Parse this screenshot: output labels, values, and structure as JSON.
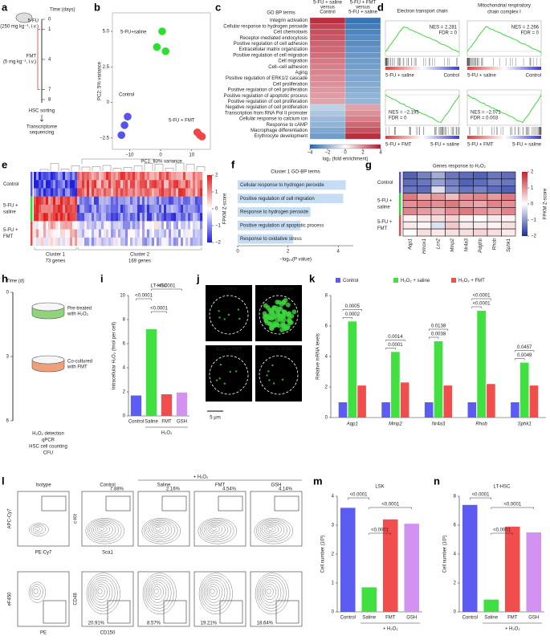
{
  "letters": [
    "a",
    "b",
    "c",
    "d",
    "e",
    "f",
    "g",
    "h",
    "i",
    "j",
    "k",
    "l",
    "m",
    "n"
  ],
  "a": {
    "time_label": "Time (days)",
    "days": [
      0,
      1,
      4,
      7,
      8
    ],
    "drug1": "5-FU",
    "dose1": "(250 mg kg⁻¹, i.v.)",
    "drug2": "FMT",
    "dose2": "(5 mg kg⁻¹, i.v.)",
    "sorting": "HSC sorting",
    "sequencing": [
      "Transcriptome",
      "sequencing"
    ],
    "colors": [
      "#9b59d0",
      "#e03a3a"
    ]
  },
  "b": {
    "type": "scatter",
    "xlabel": "PC1: 93% variance",
    "ylabel": "PC2: 5% variance",
    "xlim": [
      -15.5,
      16
    ],
    "ylim": [
      -3.3,
      6.3
    ],
    "xticks": [
      {
        "value": -10,
        "label": "−10"
      },
      0,
      10
    ],
    "yticks": [
      {
        "value": -2.5,
        "label": "−2.5"
      },
      0,
      2.5,
      {
        "value": 5,
        "label": "5.0"
      }
    ],
    "series": [
      {
        "name": "5-FU+saline",
        "color": "#2ee02e",
        "x": [
          0.5,
          -1.2,
          1.6
        ],
        "values": [
          5.0,
          3.9,
          3.6
        ]
      },
      {
        "name": "Control",
        "color": "#5555ee",
        "x": [
          -10.6,
          -11.6,
          -12.6
        ],
        "values": [
          -1.0,
          -1.6,
          -2.3
        ]
      },
      {
        "name": "5-FU + FMT",
        "color": "#f04848",
        "x": [
          11.8,
          12.6,
          13.3
        ],
        "values": [
          -2.1,
          -2.3,
          -2.4
        ]
      }
    ]
  },
  "c": {
    "header": "GO BP terms",
    "col_headers": [
      [
        "5-FU + saline",
        "versus",
        "Control"
      ],
      [
        "5-FU + FMT",
        "versus",
        "5-FU + saline"
      ]
    ],
    "terms": [
      "Integrin activation",
      "Cellular response to hydrogen peroxide",
      "Cell chemotaxis",
      "Receptor-mediated endocytosis",
      "Positive regulation of cell adhesion",
      "Extracellular matrix organization",
      "Positive regulation of cell migration",
      "Cell migration",
      "Cell–cell adhesion",
      "Aging",
      "Positive regulation of ERK1/2 cascade",
      "Cell proliferation",
      "Positive regulation of cell proliferation",
      "Positive regulation of apoptotic process",
      "Positive regulation of cell proliferation",
      "Negative regulation of cell proliferation",
      "Transcription from RNA Pol II promoter",
      "Cellular response to calcium ion",
      "Response to cAMP",
      "Macrophage differentiation",
      "Erythrocyte development"
    ],
    "term_colors": [
      "#3a8fd8",
      "#3a8fd8",
      "#3a8fd8",
      "#3a8fd8",
      "#3a8fd8",
      "#3a8fd8",
      "#3a8fd8",
      "#3a8fd8",
      "#3a8fd8",
      "#3a8fd8",
      "#3a8fd8",
      "#3a8fd8",
      "#3a8fd8",
      "#3a8fd8",
      "#3a8fd8",
      "#e03a3a",
      "#e03a3a",
      "#e03a3a",
      "#e03a3a",
      "#e03a3a",
      "#e03a3a"
    ],
    "values": [
      [
        3.6,
        3.2,
        3.0,
        2.9,
        2.7,
        2.6,
        2.5,
        2.3,
        2.2,
        2.1,
        2.0,
        1.9,
        1.8,
        1.7,
        1.6,
        -1.2,
        -1.5,
        -1.8,
        -2.0,
        -2.3,
        -2.6
      ],
      [
        -3.6,
        -3.4,
        -3.2,
        -3.0,
        -3.0,
        -2.8,
        -2.7,
        -2.6,
        -2.5,
        -2.4,
        -2.3,
        -2.2,
        -2.1,
        -2.0,
        -1.9,
        1.6,
        1.9,
        2.2,
        2.6,
        3.0,
        3.6
      ]
    ],
    "scale_label": "log₂ (fold enrichment)",
    "scale_lim": [
      -4,
      4
    ],
    "scale_ticks": [
      {
        "value": -4,
        "label": "−4"
      },
      {
        "value": -2,
        "label": "−2"
      },
      0,
      2,
      4
    ],
    "scale_colors": [
      "#2166ac",
      "#ffffff",
      "#b2182b"
    ]
  },
  "d": {
    "plots": [
      {
        "title": [
          "Electron transport chain"
        ],
        "nes": "NES = 2.281",
        "fdr": "FDR = 0",
        "left": "5-FU + saline",
        "right": "Control",
        "left_color": "#e03a3a",
        "right_color": "#3a6fd8"
      },
      {
        "title": [
          "Mitochondrial respiratory",
          "chain complex I"
        ],
        "nes": "NES = 2.266",
        "fdr": "FDR = 0",
        "left": "5-FU + saline",
        "right": "Control",
        "left_color": "#e03a3a",
        "right_color": "#3a6fd8"
      },
      {
        "title": [],
        "nes": "NES = −2.195",
        "fdr": "FDR = 0",
        "left": "5-FU + FMT",
        "right": "5-FU + saline",
        "left_color": "#2ec02e",
        "right_color": "#f0902e"
      },
      {
        "title": [],
        "nes": "NES = −2.071",
        "fdr": "FDR = 0.003",
        "left": "5-FU + FMT",
        "right": "5-FU + saline",
        "left_color": "#2ec02e",
        "right_color": "#f0902e"
      }
    ]
  },
  "e": {
    "groups": [
      [
        "Control"
      ],
      [
        "5-FU +",
        "saline"
      ],
      [
        "5-FU +",
        "FMT"
      ]
    ],
    "group_colors": [
      "#5555ee",
      "#2ee02e",
      "#f04848"
    ],
    "clusters": [
      [
        "Cluster 1",
        "73 genes"
      ],
      [
        "Cluster 2",
        "169 genes"
      ]
    ],
    "cluster_colors": [
      "#3a7fd0",
      "#f0a070"
    ],
    "scale_lim": [
      -2,
      2
    ],
    "scale_ticks": [
      2,
      1,
      0,
      {
        "value": -1,
        "label": "−1"
      },
      {
        "value": -2,
        "label": "−2"
      }
    ],
    "scale_label": "FPKM Z-score",
    "scale_colors": [
      "#2020d8",
      "#ffffff",
      "#e02020"
    ]
  },
  "f": {
    "type": "bar",
    "title": "Cluster 1 GO-BP terms",
    "categories": [
      "Cellular response to hydrogen peroxide",
      "Positive regulation of cell migration",
      "Response to hydrogen peroxide",
      "Positive regulation of apoptotic process",
      "Response to oxidative stress"
    ],
    "values": [
      4.3,
      4.2,
      2.9,
      2.5,
      2.2
    ],
    "xlim": [
      0,
      4.6
    ],
    "xticks": [
      0,
      2,
      4
    ],
    "xlabel": "−log₁₀(P value)",
    "color": "#c6dcf3"
  },
  "g": {
    "title": "Genes response to H₂O₂",
    "genes": [
      "Aqp1",
      "Hmox1",
      "Lcn2",
      "Mmp2",
      "Nr4a3",
      "Pdgfrb",
      "Rhob",
      "Sphk1"
    ],
    "groups": [
      [
        "Control"
      ],
      [
        "5-FU +",
        "saline"
      ],
      [
        "5-FU +",
        "FMT"
      ]
    ],
    "group_colors": [
      "#5555ee",
      "#2ee02e",
      "#f04848"
    ],
    "values": [
      [
        -1.5,
        -1.2,
        -0.8,
        -1.3,
        -1.4,
        -1.5,
        -1.3,
        -1.4
      ],
      [
        -1.4,
        -1.3,
        -0.9,
        -1.2,
        -1.5,
        -1.4,
        -1.2,
        -1.3
      ],
      [
        -1.3,
        -1.4,
        -0.3,
        -1.1,
        -1.3,
        -1.2,
        -1.4,
        -1.5
      ],
      [
        1.2,
        0.8,
        0.9,
        0.6,
        1.0,
        1.1,
        0.9,
        1.2
      ],
      [
        1.0,
        1.1,
        1.0,
        1.2,
        0.9,
        0.8,
        1.1,
        1.0
      ],
      [
        1.1,
        0.9,
        0.7,
        1.0,
        1.2,
        1.0,
        0.8,
        1.1
      ],
      [
        0.1,
        0.2,
        0.3,
        0.4,
        0.1,
        0.0,
        0.2,
        0.1
      ],
      [
        0.2,
        0.1,
        -0.3,
        0.5,
        0.2,
        0.2,
        0.1,
        0.3
      ],
      [
        0.0,
        0.3,
        0.2,
        0.3,
        0.3,
        0.4,
        0.3,
        0.2
      ]
    ],
    "scale_lim": [
      -2,
      2
    ],
    "scale_ticks": [
      2,
      1,
      0,
      {
        "value": -1,
        "label": "−1"
      },
      {
        "value": -2,
        "label": "−2"
      }
    ],
    "scale_label": "FPKM Z-score",
    "scale_colors": [
      "#1a2e9c",
      "#ffffff",
      "#c8202c"
    ]
  },
  "h": {
    "time_label": "Time (d)",
    "days": [
      0,
      3,
      6
    ],
    "steps": [
      [
        "Pre-treated",
        "with H₂O₂"
      ],
      [
        "Co-cultured",
        "with FMT"
      ]
    ],
    "readouts": [
      "H₂O₂ detection",
      "qPCR",
      "HSC cell counting",
      "CFU"
    ]
  },
  "i": {
    "type": "bar",
    "title": "LT-HSC",
    "categories": [
      "Control",
      "Saline",
      "FMT",
      "GSH"
    ],
    "values": [
      1.7,
      7.2,
      1.8,
      1.95
    ],
    "colors": [
      "#5c5cf2",
      "#3fe03f",
      "#f24d4d",
      "#d392f2"
    ],
    "ylim": [
      0,
      10
    ],
    "yticks": [
      0,
      2,
      4,
      6,
      8,
      10
    ],
    "ylabel": "Intracellular H₂O₂ (fmol per cell)",
    "group_label": "H₂O₂",
    "pvalues": [
      "<0.0001",
      "<0.0001",
      "<0.0001"
    ]
  },
  "j": {
    "labels": [
      "Control",
      "H₂O₂ + saline",
      "H₂O₂ + FMT",
      "H₂O₂ + GSH"
    ],
    "scale_bar": "5 μm"
  },
  "k": {
    "type": "bar",
    "categories": [
      "Aqp1",
      "Mmp2",
      "Nr4a3",
      "Rhob",
      "Sphk1"
    ],
    "series": [
      {
        "name": "Control",
        "color": "#5c5cf2",
        "values": [
          1,
          1,
          1,
          1,
          1
        ]
      },
      {
        "name": "H₂O₂ + saline",
        "color": "#3fe03f",
        "values": [
          6.3,
          4.3,
          5.0,
          7.0,
          3.6
        ]
      },
      {
        "name": "H₂O₂ + FMT",
        "color": "#f24d4d",
        "values": [
          2.1,
          2.3,
          2.1,
          2.2,
          2.1
        ]
      }
    ],
    "ylim": [
      0,
      8
    ],
    "yticks": [
      0,
      2,
      4,
      6,
      8
    ],
    "ylabel": "Relative mRNA levels",
    "pvalues": [
      [
        "0.0005",
        "0.0002"
      ],
      [
        "0.0014",
        "0.0001"
      ],
      [
        "0.0138",
        "0.0038"
      ],
      [
        "<0.0001",
        "<0.0001"
      ],
      [
        "0.0457",
        "0.0049"
      ]
    ]
  },
  "l": {
    "columns": [
      "Isotype",
      "Control",
      "Saline",
      "FMT",
      "GSH"
    ],
    "treatment": "+ H₂O₂",
    "top_percent": [
      "7.88%",
      "2.16%",
      "4.54%",
      "4.14%"
    ],
    "bottom_percent": [
      "20.91%",
      "8.57%",
      "19.21%",
      "18.64%"
    ],
    "isotype_axes": [
      [
        "APC-Cy7",
        "PE-Cy7"
      ],
      [
        "eF450",
        "PE"
      ]
    ],
    "axes": [
      [
        "c-Kit",
        "Sca1"
      ],
      [
        "CD48",
        "CD150"
      ]
    ]
  },
  "m": {
    "type": "bar",
    "title": "LSK",
    "categories": [
      "Control",
      "Saline",
      "FMT",
      "GSH"
    ],
    "values": [
      3.6,
      0.85,
      3.2,
      3.05
    ],
    "colors": [
      "#5c5cf2",
      "#3fe03f",
      "#f24d4d",
      "#d392f2"
    ],
    "ylim": [
      0,
      4
    ],
    "yticks": [
      0,
      1,
      2,
      3,
      4
    ],
    "ylabel": "Cell number (10³)",
    "group_label": "+ H₂O₂",
    "pvalues": [
      "<0.0001",
      "<0.0001",
      "<0.0001"
    ]
  },
  "n": {
    "type": "bar",
    "title": "LT-HSC",
    "categories": [
      "Control",
      "Saline",
      "FMT",
      "GSH"
    ],
    "values": [
      7.4,
      0.85,
      5.9,
      5.5
    ],
    "colors": [
      "#5c5cf2",
      "#3fe03f",
      "#f24d4d",
      "#d392f2"
    ],
    "ylim": [
      0,
      8
    ],
    "yticks": [
      0,
      2,
      4,
      6,
      8
    ],
    "ylabel": "Cell number (10²)",
    "group_label": "+ H₂O₂",
    "pvalues": [
      "<0.0001",
      "<0.0001",
      "<0.0001"
    ]
  }
}
